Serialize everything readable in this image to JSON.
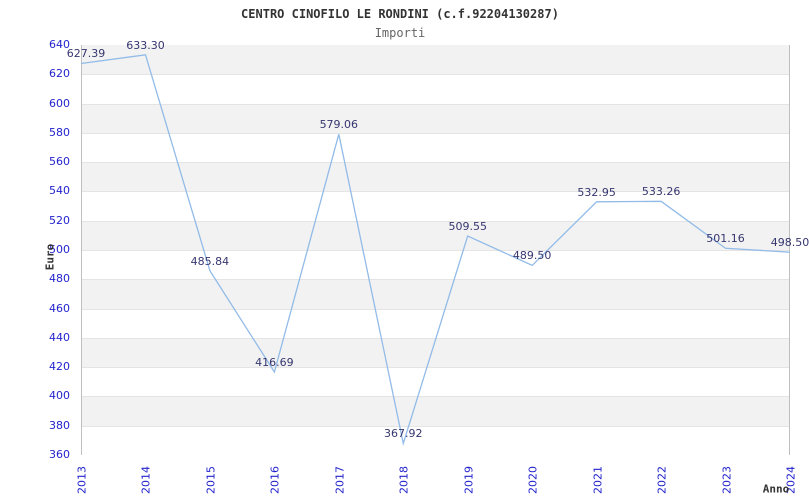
{
  "title": "CENTRO CINOFILO LE RONDINI (c.f.92204130287)",
  "subtitle": "Importi",
  "chart_data": {
    "type": "line",
    "title": "CENTRO CINOFILO LE RONDINI (c.f.92204130287)",
    "subtitle": "Importi",
    "xlabel": "Anno",
    "ylabel": "Euro",
    "categories": [
      "2013",
      "2014",
      "2015",
      "2016",
      "2017",
      "2018",
      "2019",
      "2020",
      "2021",
      "2022",
      "2023",
      "2024"
    ],
    "series": [
      {
        "name": "Importi",
        "values": [
          627.39,
          633.3,
          485.84,
          416.69,
          579.06,
          367.92,
          509.55,
          489.5,
          532.95,
          533.26,
          501.16,
          498.5
        ]
      }
    ],
    "point_labels": [
      "627.39",
      "633.30",
      "485.84",
      "416.69",
      "579.06",
      "367.92",
      "509.55",
      "489.50",
      "532.95",
      "533.26",
      "501.16",
      "498.50"
    ],
    "ylim": [
      360,
      640
    ],
    "ytick_step": 20,
    "grid": "horizontal-bands-on",
    "legend_position": "none",
    "colors": {
      "line": "#92bbe8",
      "tick_label_blue": "#2323cd",
      "point_label": "#363670",
      "band_gray": "#f2f2f2",
      "band_white": "#ffffff",
      "gridline": "#e4e4e4",
      "plot_border": "#bfbfbf",
      "title": "#333333",
      "subtitle": "#666666",
      "axis_title": "#333333"
    }
  }
}
